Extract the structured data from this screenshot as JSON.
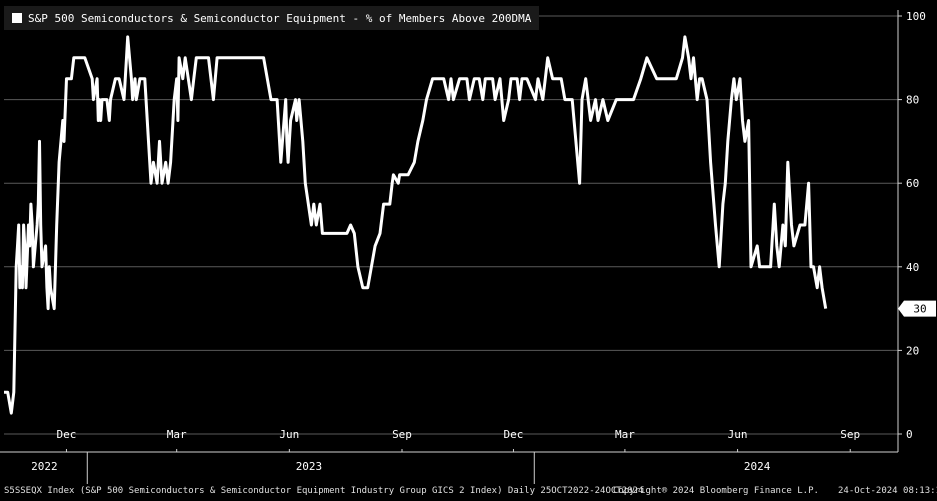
{
  "chart_data": {
    "type": "line",
    "title": "S&P 500 Semiconductors & Semiconductor Equipment - % of Members Above 200DMA",
    "series": [
      {
        "name": "S&P 500 Semiconductors & Semiconductor Equipment - % of Members Above 200DMA",
        "color": "#ffffff",
        "last_value_label": "30",
        "points": [
          [
            "2022-10-25",
            10
          ],
          [
            "2022-10-28",
            10
          ],
          [
            "2022-10-31",
            5
          ],
          [
            "2022-11-02",
            10
          ],
          [
            "2022-11-03",
            25
          ],
          [
            "2022-11-04",
            40
          ],
          [
            "2022-11-05",
            45
          ],
          [
            "2022-11-06",
            50
          ],
          [
            "2022-11-07",
            35
          ],
          [
            "2022-11-08",
            40
          ],
          [
            "2022-11-09",
            35
          ],
          [
            "2022-11-10",
            50
          ],
          [
            "2022-11-11",
            45
          ],
          [
            "2022-11-12",
            35
          ],
          [
            "2022-11-14",
            50
          ],
          [
            "2022-11-15",
            45
          ],
          [
            "2022-11-16",
            55
          ],
          [
            "2022-11-17",
            50
          ],
          [
            "2022-11-18",
            40
          ],
          [
            "2022-11-21",
            50
          ],
          [
            "2022-11-22",
            55
          ],
          [
            "2022-11-23",
            70
          ],
          [
            "2022-11-24",
            50
          ],
          [
            "2022-11-25",
            40
          ],
          [
            "2022-11-28",
            45
          ],
          [
            "2022-11-29",
            35
          ],
          [
            "2022-11-30",
            30
          ],
          [
            "2022-12-01",
            40
          ],
          [
            "2022-12-02",
            35
          ],
          [
            "2022-12-05",
            30
          ],
          [
            "2022-12-07",
            50
          ],
          [
            "2022-12-09",
            65
          ],
          [
            "2022-12-12",
            75
          ],
          [
            "2022-12-13",
            70
          ],
          [
            "2022-12-15",
            85
          ],
          [
            "2022-12-19",
            85
          ],
          [
            "2022-12-21",
            90
          ],
          [
            "2022-12-30",
            90
          ],
          [
            "2023-01-05",
            85
          ],
          [
            "2023-01-06",
            80
          ],
          [
            "2023-01-09",
            85
          ],
          [
            "2023-01-10",
            75
          ],
          [
            "2023-01-11",
            80
          ],
          [
            "2023-01-12",
            75
          ],
          [
            "2023-01-13",
            80
          ],
          [
            "2023-01-17",
            80
          ],
          [
            "2023-01-19",
            75
          ],
          [
            "2023-01-20",
            80
          ],
          [
            "2023-01-24",
            85
          ],
          [
            "2023-01-27",
            85
          ],
          [
            "2023-01-31",
            80
          ],
          [
            "2023-02-02",
            90
          ],
          [
            "2023-02-03",
            95
          ],
          [
            "2023-02-06",
            85
          ],
          [
            "2023-02-07",
            80
          ],
          [
            "2023-02-09",
            85
          ],
          [
            "2023-02-10",
            80
          ],
          [
            "2023-02-13",
            85
          ],
          [
            "2023-02-17",
            85
          ],
          [
            "2023-02-20",
            70
          ],
          [
            "2023-02-22",
            60
          ],
          [
            "2023-02-24",
            65
          ],
          [
            "2023-02-27",
            60
          ],
          [
            "2023-03-01",
            70
          ],
          [
            "2023-03-03",
            60
          ],
          [
            "2023-03-06",
            65
          ],
          [
            "2023-03-08",
            60
          ],
          [
            "2023-03-10",
            65
          ],
          [
            "2023-03-13",
            80
          ],
          [
            "2023-03-15",
            85
          ],
          [
            "2023-03-16",
            75
          ],
          [
            "2023-03-17",
            90
          ],
          [
            "2023-03-20",
            85
          ],
          [
            "2023-03-22",
            90
          ],
          [
            "2023-03-27",
            80
          ],
          [
            "2023-03-29",
            85
          ],
          [
            "2023-03-31",
            90
          ],
          [
            "2023-04-10",
            90
          ],
          [
            "2023-04-14",
            80
          ],
          [
            "2023-04-17",
            90
          ],
          [
            "2023-04-20",
            90
          ],
          [
            "2023-05-25",
            90
          ],
          [
            "2023-05-31",
            80
          ],
          [
            "2023-06-05",
            80
          ],
          [
            "2023-06-08",
            65
          ],
          [
            "2023-06-12",
            80
          ],
          [
            "2023-06-13",
            70
          ],
          [
            "2023-06-14",
            65
          ],
          [
            "2023-06-16",
            75
          ],
          [
            "2023-06-20",
            80
          ],
          [
            "2023-06-21",
            75
          ],
          [
            "2023-06-23",
            80
          ],
          [
            "2023-06-26",
            70
          ],
          [
            "2023-06-28",
            60
          ],
          [
            "2023-07-03",
            50
          ],
          [
            "2023-07-05",
            55
          ],
          [
            "2023-07-07",
            50
          ],
          [
            "2023-07-10",
            55
          ],
          [
            "2023-07-12",
            48
          ],
          [
            "2023-07-14",
            48
          ],
          [
            "2023-08-01",
            48
          ],
          [
            "2023-08-04",
            50
          ],
          [
            "2023-08-07",
            48
          ],
          [
            "2023-08-10",
            40
          ],
          [
            "2023-08-14",
            35
          ],
          [
            "2023-08-18",
            35
          ],
          [
            "2023-08-24",
            45
          ],
          [
            "2023-08-28",
            48
          ],
          [
            "2023-08-31",
            55
          ],
          [
            "2023-09-05",
            55
          ],
          [
            "2023-09-07",
            60
          ],
          [
            "2023-09-08",
            62
          ],
          [
            "2023-09-12",
            60
          ],
          [
            "2023-09-13",
            62
          ],
          [
            "2023-09-20",
            62
          ],
          [
            "2023-09-25",
            65
          ],
          [
            "2023-09-28",
            70
          ],
          [
            "2023-10-02",
            75
          ],
          [
            "2023-10-05",
            80
          ],
          [
            "2023-10-10",
            85
          ],
          [
            "2023-10-19",
            85
          ],
          [
            "2023-10-23",
            80
          ],
          [
            "2023-10-25",
            85
          ],
          [
            "2023-10-27",
            80
          ],
          [
            "2023-11-01",
            85
          ],
          [
            "2023-11-07",
            85
          ],
          [
            "2023-11-09",
            80
          ],
          [
            "2023-11-13",
            85
          ],
          [
            "2023-11-17",
            85
          ],
          [
            "2023-11-20",
            80
          ],
          [
            "2023-11-22",
            85
          ],
          [
            "2023-11-28",
            85
          ],
          [
            "2023-11-30",
            80
          ],
          [
            "2023-12-04",
            85
          ],
          [
            "2023-12-07",
            75
          ],
          [
            "2023-12-11",
            80
          ],
          [
            "2023-12-13",
            85
          ],
          [
            "2023-12-15",
            85
          ],
          [
            "2023-12-18",
            85
          ],
          [
            "2023-12-20",
            80
          ],
          [
            "2023-12-22",
            85
          ],
          [
            "2023-12-26",
            85
          ],
          [
            "2024-01-02",
            80
          ],
          [
            "2024-01-04",
            85
          ],
          [
            "2024-01-08",
            80
          ],
          [
            "2024-01-10",
            85
          ],
          [
            "2024-01-12",
            90
          ],
          [
            "2024-01-16",
            85
          ],
          [
            "2024-01-23",
            85
          ],
          [
            "2024-01-26",
            80
          ],
          [
            "2024-02-01",
            80
          ],
          [
            "2024-02-07",
            60
          ],
          [
            "2024-02-09",
            80
          ],
          [
            "2024-02-12",
            85
          ],
          [
            "2024-02-16",
            75
          ],
          [
            "2024-02-20",
            80
          ],
          [
            "2024-02-22",
            75
          ],
          [
            "2024-02-26",
            80
          ],
          [
            "2024-03-01",
            75
          ],
          [
            "2024-03-08",
            80
          ],
          [
            "2024-03-15",
            80
          ],
          [
            "2024-03-22",
            80
          ],
          [
            "2024-03-28",
            85
          ],
          [
            "2024-04-02",
            90
          ],
          [
            "2024-04-10",
            85
          ],
          [
            "2024-04-26",
            85
          ],
          [
            "2024-05-01",
            90
          ],
          [
            "2024-05-03",
            95
          ],
          [
            "2024-05-06",
            90
          ],
          [
            "2024-05-08",
            85
          ],
          [
            "2024-05-10",
            90
          ],
          [
            "2024-05-13",
            80
          ],
          [
            "2024-05-15",
            85
          ],
          [
            "2024-05-17",
            85
          ],
          [
            "2024-05-21",
            80
          ],
          [
            "2024-05-24",
            65
          ],
          [
            "2024-05-28",
            50
          ],
          [
            "2024-05-31",
            40
          ],
          [
            "2024-06-03",
            55
          ],
          [
            "2024-06-05",
            60
          ],
          [
            "2024-06-07",
            70
          ],
          [
            "2024-06-10",
            80
          ],
          [
            "2024-06-12",
            85
          ],
          [
            "2024-06-14",
            80
          ],
          [
            "2024-06-17",
            85
          ],
          [
            "2024-06-19",
            75
          ],
          [
            "2024-06-21",
            70
          ],
          [
            "2024-06-24",
            75
          ],
          [
            "2024-06-26",
            40
          ],
          [
            "2024-07-01",
            45
          ],
          [
            "2024-07-03",
            40
          ],
          [
            "2024-07-05",
            40
          ],
          [
            "2024-07-12",
            40
          ],
          [
            "2024-07-15",
            55
          ],
          [
            "2024-07-17",
            45
          ],
          [
            "2024-07-19",
            40
          ],
          [
            "2024-07-22",
            50
          ],
          [
            "2024-07-24",
            45
          ],
          [
            "2024-07-26",
            65
          ],
          [
            "2024-07-29",
            50
          ],
          [
            "2024-07-31",
            45
          ],
          [
            "2024-08-05",
            50
          ],
          [
            "2024-08-09",
            50
          ],
          [
            "2024-08-12",
            60
          ],
          [
            "2024-08-14",
            40
          ],
          [
            "2024-08-16",
            40
          ],
          [
            "2024-08-19",
            35
          ],
          [
            "2024-08-21",
            40
          ],
          [
            "2024-08-23",
            35
          ],
          [
            "2024-08-26",
            30
          ]
        ]
      }
    ],
    "x_range": [
      "2022-10-25",
      "2024-10-24"
    ],
    "ylim": [
      0,
      100
    ],
    "y_ticks": [
      0,
      20,
      40,
      60,
      80,
      100
    ],
    "x_month_ticks": [
      {
        "date": "2022-12-15",
        "label": "Dec"
      },
      {
        "date": "2023-03-15",
        "label": "Mar"
      },
      {
        "date": "2023-06-15",
        "label": "Jun"
      },
      {
        "date": "2023-09-15",
        "label": "Sep"
      },
      {
        "date": "2023-12-15",
        "label": "Dec"
      },
      {
        "date": "2024-03-15",
        "label": "Mar"
      },
      {
        "date": "2024-06-15",
        "label": "Jun"
      },
      {
        "date": "2024-09-15",
        "label": "Sep"
      }
    ],
    "x_year_labels": [
      {
        "date": "2022-11-27",
        "label": "2022"
      },
      {
        "date": "2023-07-01",
        "label": "2023"
      },
      {
        "date": "2024-07-01",
        "label": "2024"
      }
    ],
    "year_boundaries": [
      "2023-01-01",
      "2024-01-01"
    ],
    "grid": true,
    "y_axis_side": "right",
    "background": "#000000",
    "grid_color": "#5a5a5a"
  },
  "footer": {
    "left": "S5SSEQX Index (S&P 500 Semiconductors & Semiconductor Equipment Industry Group GICS 2 Index)  Daily 25OCT2022-24OCT2024",
    "center": "Copyright® 2024 Bloomberg Finance L.P.",
    "right": "24-Oct-2024 08:13:19"
  }
}
